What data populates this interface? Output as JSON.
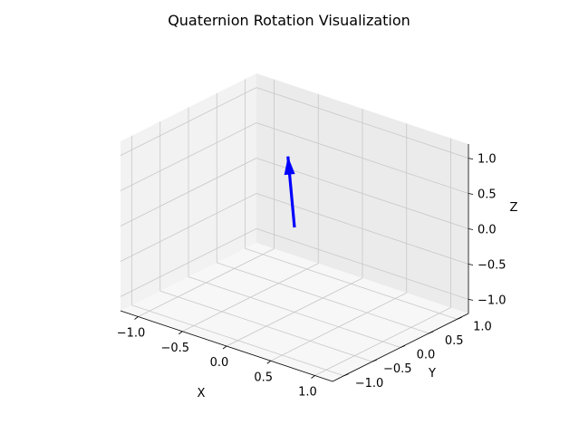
{
  "chart_data": {
    "type": "3d-quiver",
    "title": "Quaternion Rotation Visualization",
    "xlabel": "X",
    "ylabel": "Y",
    "zlabel": "Z",
    "xlim": [
      -1.2,
      1.2
    ],
    "ylim": [
      -1.2,
      1.2
    ],
    "zlim": [
      -1.2,
      1.2
    ],
    "xticks": [
      -1.0,
      -0.5,
      0.0,
      0.5,
      1.0
    ],
    "yticks": [
      -1.0,
      -0.5,
      0.0,
      0.5,
      1.0
    ],
    "zticks": [
      -1.0,
      -0.5,
      0.0,
      0.5,
      1.0
    ],
    "xtick_labels": [
      "−1.0",
      "−0.5",
      "0.0",
      "0.5",
      "1.0"
    ],
    "ytick_labels": [
      "−1.0",
      "−0.5",
      "0.0",
      "0.5",
      "1.0"
    ],
    "ztick_labels": [
      "−1.0",
      "−0.5",
      "0.0",
      "0.5",
      "1.0"
    ],
    "grid": true,
    "vectors": [
      {
        "origin": [
          0,
          0,
          0
        ],
        "vector": [
          -0.51,
          0.68,
          0.52
        ],
        "color": "#0000ff"
      }
    ]
  }
}
